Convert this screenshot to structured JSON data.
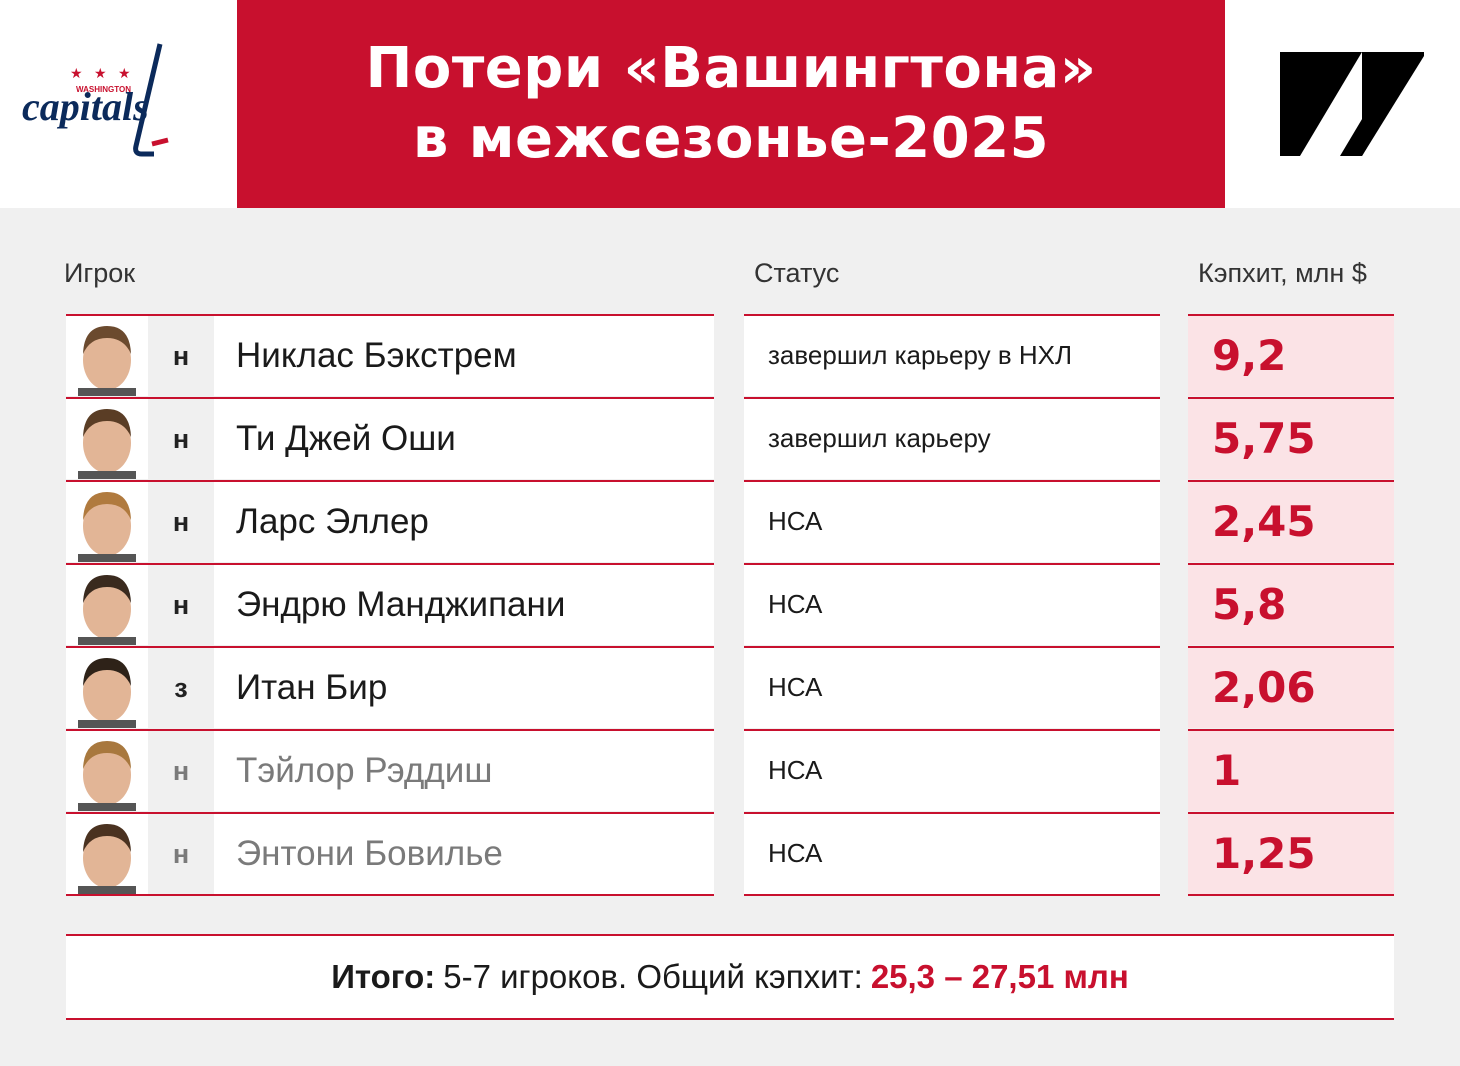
{
  "header": {
    "title_line1": "Потери «Вашингтона»",
    "title_line2": "в межсезонье-2025",
    "left_logo": {
      "name": "washington-capitals-logo",
      "text": "WASHINGTON capitals"
    },
    "right_logo": {
      "name": "sports-site-logo"
    }
  },
  "columns": {
    "player": "Игрок",
    "status": "Статус",
    "cap": "Кэпхит, млн $"
  },
  "players": [
    {
      "pos": "н",
      "name": "Никлас Бэкстрем",
      "status": "завершил карьеру в НХЛ",
      "cap": "9,2",
      "faded": false,
      "hair": "#6b4a2e"
    },
    {
      "pos": "н",
      "name": "Ти Джей Оши",
      "status": "завершил карьеру",
      "cap": "5,75",
      "faded": false,
      "hair": "#5a3d25"
    },
    {
      "pos": "н",
      "name": "Ларс Эллер",
      "status": "НСА",
      "cap": "2,45",
      "faded": false,
      "hair": "#b07a3e"
    },
    {
      "pos": "н",
      "name": "Эндрю Манджипани",
      "status": "НСА",
      "cap": "5,8",
      "faded": false,
      "hair": "#3a2a1e"
    },
    {
      "pos": "з",
      "name": "Итан Бир",
      "status": "НСА",
      "cap": "2,06",
      "faded": false,
      "hair": "#2e2218"
    },
    {
      "pos": "н",
      "name": "Тэйлор Рэддиш",
      "status": "НСА",
      "cap": "1",
      "faded": true,
      "hair": "#a8783e"
    },
    {
      "pos": "н",
      "name": "Энтони Бовилье",
      "status": "НСА",
      "cap": "1,25",
      "faded": true,
      "hair": "#4a3220"
    }
  ],
  "total": {
    "label": "Итого:",
    "text": "5-7 игроков. Общий кэпхит:",
    "value": "25,3 – 27,51 млн"
  },
  "colors": {
    "accent": "#c8102e",
    "cap_bg": "#fbe3e6",
    "page_bg": "#f0f0f0"
  }
}
